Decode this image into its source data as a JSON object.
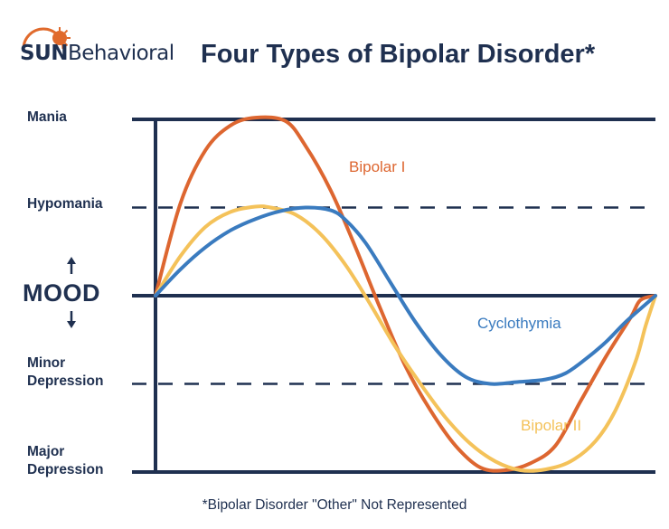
{
  "logo": {
    "brand_bold": "SUN",
    "brand_rest": "Behavioral",
    "sun_color": "#e06a2c"
  },
  "chart_data": {
    "type": "line",
    "title": "Four Types of Bipolar Disorder*",
    "ylabel": "MOOD",
    "y_levels": [
      {
        "label": "Mania",
        "value": 2
      },
      {
        "label": "Hypomania",
        "value": 1
      },
      {
        "label": "",
        "value": 0
      },
      {
        "label": "Minor Depression",
        "value": -1
      },
      {
        "label": "Major Depression",
        "value": -2
      }
    ],
    "ylim": [
      -2,
      2
    ],
    "xlim": [
      0,
      1
    ],
    "series": [
      {
        "name": "Bipolar I",
        "color": "#dd6630",
        "x": [
          0,
          0.05,
          0.1,
          0.15,
          0.2,
          0.26,
          0.3,
          0.35,
          0.4,
          0.45,
          0.5,
          0.55,
          0.6,
          0.65,
          0.7,
          0.75,
          0.8,
          0.85,
          0.9,
          0.95,
          0.97,
          1
        ],
        "y": [
          0,
          1.05,
          1.65,
          1.93,
          2.02,
          1.98,
          1.7,
          1.2,
          0.55,
          -0.15,
          -0.8,
          -1.3,
          -1.7,
          -1.95,
          -1.98,
          -1.9,
          -1.7,
          -1.2,
          -0.7,
          -0.25,
          -0.05,
          0
        ]
      },
      {
        "name": "Bipolar II",
        "color": "#f4c25a",
        "x": [
          0,
          0.05,
          0.1,
          0.15,
          0.2,
          0.23,
          0.28,
          0.33,
          0.38,
          0.43,
          0.48,
          0.53,
          0.58,
          0.63,
          0.68,
          0.73,
          0.78,
          0.83,
          0.88,
          0.92,
          0.96,
          0.98,
          1
        ],
        "y": [
          0,
          0.45,
          0.78,
          0.95,
          1.01,
          1.0,
          0.92,
          0.7,
          0.35,
          -0.1,
          -0.58,
          -1.0,
          -1.38,
          -1.68,
          -1.88,
          -1.98,
          -1.97,
          -1.88,
          -1.65,
          -1.3,
          -0.75,
          -0.35,
          0
        ]
      },
      {
        "name": "Cyclothymia",
        "color": "#3a7bbf",
        "x": [
          0,
          0.05,
          0.1,
          0.15,
          0.2,
          0.25,
          0.3,
          0.35,
          0.38,
          0.42,
          0.47,
          0.52,
          0.57,
          0.62,
          0.67,
          0.72,
          0.78,
          0.82,
          0.86,
          0.9,
          0.94,
          0.98,
          1
        ],
        "y": [
          0,
          0.3,
          0.55,
          0.74,
          0.87,
          0.96,
          1.0,
          0.97,
          0.86,
          0.6,
          0.15,
          -0.3,
          -0.67,
          -0.92,
          -1.0,
          -0.98,
          -0.95,
          -0.88,
          -0.72,
          -0.53,
          -0.3,
          -0.1,
          0
        ]
      }
    ],
    "footnote": "*Bipolar Disorder \"Other\" Not Represented"
  }
}
